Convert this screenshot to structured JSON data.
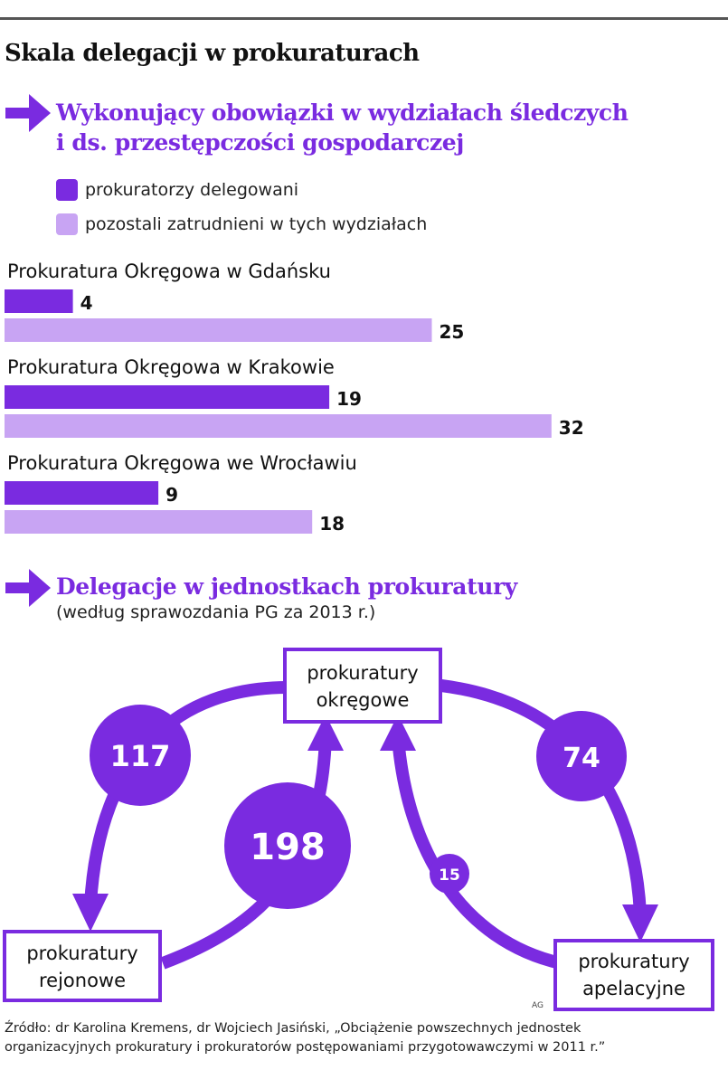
{
  "title": "Skala delegacji w prokuraturach",
  "section1": {
    "title_line1": "Wykonujący obowiązki w wydziałach śledczych",
    "title_line2": "i ds. przestępczości gospodarczej",
    "legend": [
      "prokuratorzy delegowani",
      "pozostali zatrudnieni w tych wydziałach"
    ]
  },
  "colors": {
    "accent": "#7a2be0",
    "light": "#c8a4f3",
    "text": "#111111"
  },
  "chart_data": {
    "type": "bar",
    "orientation": "horizontal",
    "categories": [
      "Prokuratura Okręgowa w Gdańsku",
      "Prokuratura Okręgowa w Krakowie",
      "Prokuratura Okręgowa we Wrocławiu"
    ],
    "series": [
      {
        "name": "prokuratorzy delegowani",
        "values": [
          4,
          19,
          9
        ]
      },
      {
        "name": "pozostali zatrudnieni w tych wydziałach",
        "values": [
          25,
          32,
          18
        ]
      }
    ]
  },
  "section2": {
    "title": "Delegacje w jednostkach prokuratury",
    "subtitle": "(według sprawozdania PG za 2013 r.)",
    "boxes": {
      "okregowe": [
        "prokuratury",
        "okręgowe"
      ],
      "rejonowe": [
        "prokuratury",
        "rejonowe"
      ],
      "apelacyjne": [
        "prokuratury",
        "apelacyjne"
      ]
    },
    "flows": {
      "okregowe_to_rejonowe": 117,
      "rejonowe_to_okregowe": 198,
      "okregowe_to_apelacyjne": 74,
      "apelacyjne_to_okregowe": 15
    }
  },
  "source_line1": "Źródło: dr Karolina Kremens, dr Wojciech Jasiński, „Obciążenie powszechnych jednostek",
  "source_line2": "organizacyjnych prokuratury i prokuratorów postępowaniami przygotowawczymi w 2011 r.”",
  "credit": "AG"
}
